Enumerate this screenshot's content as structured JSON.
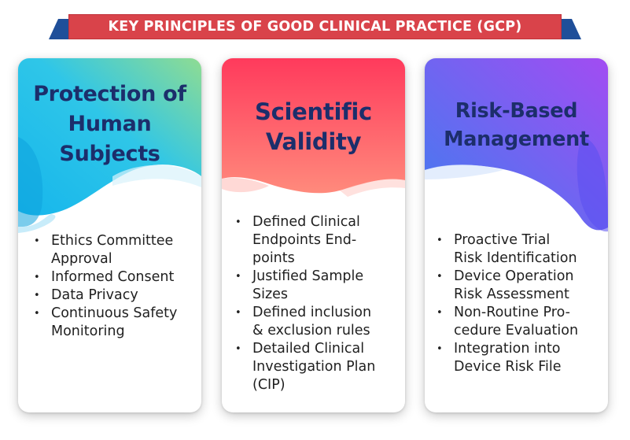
{
  "banner": {
    "title": "KEY PRINCIPLES OF GOOD CLINICAL PRACTICE (GCP)",
    "color": "#d9434a",
    "tail_color": "#1f4f99"
  },
  "cards": [
    {
      "title_lines": [
        "Protection of",
        "Human",
        "Subjects"
      ],
      "gradient": [
        "#16b6ec",
        "#8fdc92"
      ],
      "items": [
        [
          "Ethics Committee",
          "Approval"
        ],
        [
          "Informed Consent"
        ],
        [
          "Data Privacy"
        ],
        [
          "Continuous Safety",
          "Monitoring"
        ]
      ]
    },
    {
      "title_lines": [
        "Scientific",
        "Validity"
      ],
      "gradient": [
        "#ff3a5c",
        "#ff8a7c"
      ],
      "items": [
        [
          "Defined Clinical",
          "Endpoints End-",
          "points"
        ],
        [
          "Justified Sample",
          "Sizes"
        ],
        [
          "Defined inclusion",
          "& exclusion rules"
        ],
        [
          "Detailed Clinical",
          "Investigation Plan",
          "(CIP)"
        ]
      ]
    },
    {
      "title_lines": [
        "Risk-Based",
        "Management"
      ],
      "gradient": [
        "#a24cf2",
        "#3f7df0"
      ],
      "items": [
        [
          "Proactive Trial",
          "Risk Identification"
        ],
        [
          "Device Operation",
          "Risk Assessment"
        ],
        [
          "Non-Routine Pro-",
          "cedure Evaluation"
        ],
        [
          "Integration into",
          "Device Risk File"
        ]
      ]
    }
  ]
}
